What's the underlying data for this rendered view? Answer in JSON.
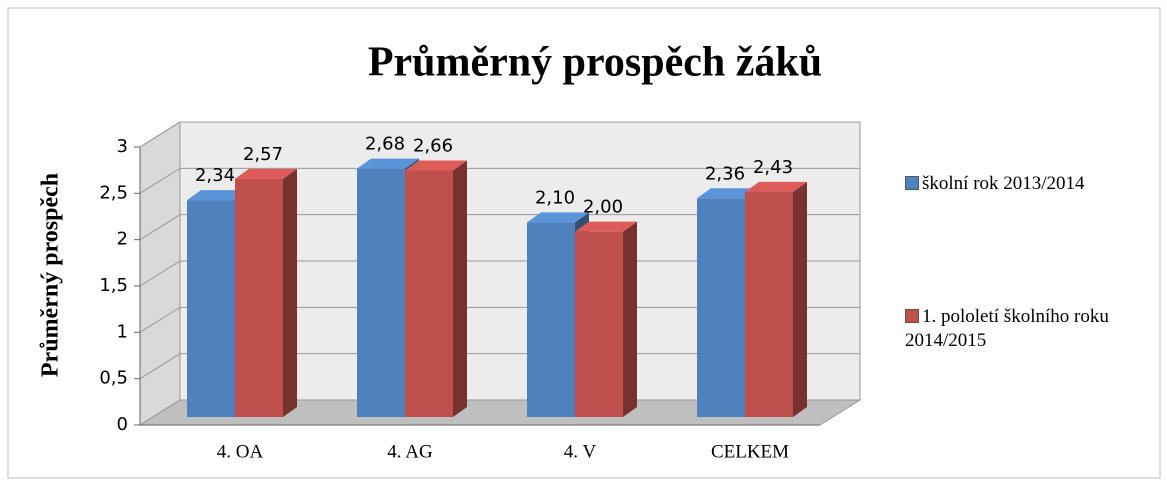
{
  "chart_data": {
    "type": "bar3d",
    "title": "Průměrný prospěch žáků",
    "y_label": "Průměrný prospěch",
    "categories": [
      "4. OA",
      "4. AG",
      "4. V",
      "CELKEM"
    ],
    "series": [
      {
        "name": "školní rok 2013/2014",
        "color": "#4f81bd",
        "values": [
          2.34,
          2.68,
          2.1,
          2.36
        ],
        "value_labels": [
          "2,34",
          "2,68",
          "2,10",
          "2,36"
        ]
      },
      {
        "name": "1. pololetí školního roku 2014/2015",
        "color": "#c0504d",
        "values": [
          2.57,
          2.66,
          2.0,
          2.43
        ],
        "value_labels": [
          "2,57",
          "2,66",
          "2,00",
          "2,43"
        ]
      }
    ],
    "ylim": [
      0,
      3
    ],
    "yticks": [
      0,
      {
        "value": 0.5,
        "label": "0,5"
      },
      1,
      {
        "value": 1.5,
        "label": "1,5"
      },
      2,
      {
        "value": 2.5,
        "label": "2,5"
      },
      3
    ],
    "grid": true,
    "legend": "right"
  }
}
